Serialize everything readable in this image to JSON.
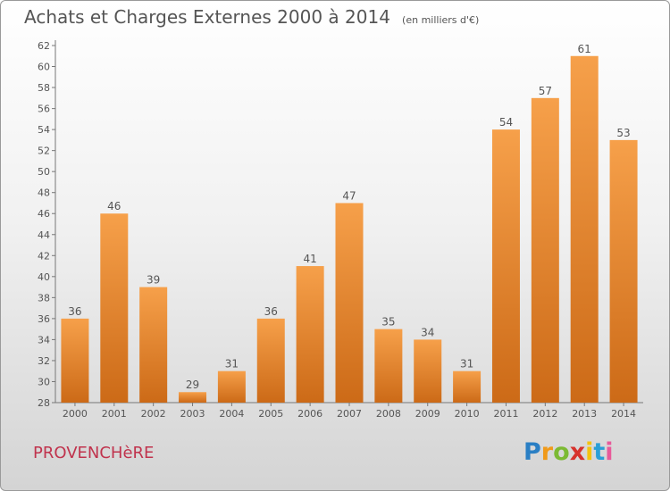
{
  "title": {
    "main": "Achats et Charges Externes 2000 à 2014",
    "unit": "(en milliers d'€)"
  },
  "commune": "PROVENCHèRE",
  "logo": {
    "letters": [
      "P",
      "r",
      "o",
      "x",
      "i",
      "t",
      "i"
    ],
    "colors": [
      "#2a7fc4",
      "#f09a1a",
      "#7cba33",
      "#d7322c",
      "#f4c30e",
      "#2a9fd6",
      "#e85a9a"
    ]
  },
  "colors": {
    "bar_light": "#f6a04a",
    "bar_dark": "#cc6a17",
    "text": "#555555",
    "commune": "#c0334d"
  },
  "chart_data": {
    "type": "bar",
    "categories": [
      "2000",
      "2001",
      "2002",
      "2003",
      "2004",
      "2005",
      "2006",
      "2007",
      "2008",
      "2009",
      "2010",
      "2011",
      "2012",
      "2013",
      "2014"
    ],
    "values": [
      36,
      46,
      39,
      29,
      31,
      36,
      41,
      47,
      35,
      34,
      31,
      54,
      57,
      61,
      53
    ],
    "ylim": [
      28,
      62
    ],
    "yticks": [
      28,
      30,
      32,
      34,
      36,
      38,
      40,
      42,
      44,
      46,
      48,
      50,
      52,
      54,
      56,
      58,
      60,
      62
    ],
    "grid": false,
    "xlabel": "",
    "ylabel": ""
  }
}
